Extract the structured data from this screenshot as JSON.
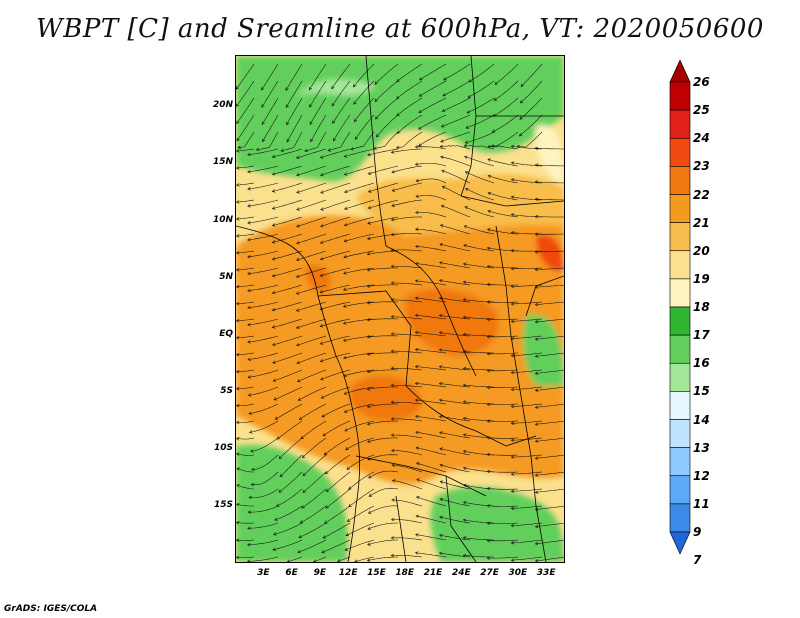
{
  "title": "WBPT [C] and Sreamline at 600hPa, VT: 2020050600",
  "credit": "GrADS: IGES/COLA",
  "lat_labels": [
    {
      "label": "20N",
      "lat": 20
    },
    {
      "label": "15N",
      "lat": 15
    },
    {
      "label": "10N",
      "lat": 10
    },
    {
      "label": "5N",
      "lat": 5
    },
    {
      "label": "EQ",
      "lat": 0
    },
    {
      "label": "5S",
      "lat": -5
    },
    {
      "label": "10S",
      "lat": -10
    },
    {
      "label": "15S",
      "lat": -15
    }
  ],
  "lon_labels": [
    {
      "label": "3E",
      "lon": 3
    },
    {
      "label": "6E",
      "lon": 6
    },
    {
      "label": "9E",
      "lon": 9
    },
    {
      "label": "12E",
      "lon": 12
    },
    {
      "label": "15E",
      "lon": 15
    },
    {
      "label": "18E",
      "lon": 18
    },
    {
      "label": "21E",
      "lon": 21
    },
    {
      "label": "24E",
      "lon": 24
    },
    {
      "label": "27E",
      "lon": 27
    },
    {
      "label": "30E",
      "lon": 30
    },
    {
      "label": "33E",
      "lon": 33
    }
  ],
  "lon_range": [
    0,
    35
  ],
  "lat_range": [
    -20,
    24.5
  ],
  "colorbar": {
    "levels": [
      "26",
      "25",
      "24",
      "23",
      "22",
      "21",
      "20",
      "19",
      "18",
      "17",
      "16",
      "15",
      "14",
      "13",
      "12",
      "11",
      "9",
      "7"
    ],
    "colors": [
      "#a50000",
      "#c00000",
      "#e0201a",
      "#f04a10",
      "#f07810",
      "#f59a20",
      "#f8bd4c",
      "#fbe08e",
      "#fff3bf",
      "#2fb52f",
      "#62cf5c",
      "#a4e79a",
      "#e6f7ff",
      "#c0e3ff",
      "#8fc7ff",
      "#5ba9f7",
      "#3a8ae8",
      "#1f66d6"
    ]
  },
  "regions": [
    {
      "name": "north-green",
      "color": "#62cf5c"
    },
    {
      "name": "southwest-green",
      "color": "#62cf5c"
    },
    {
      "name": "southeast-green",
      "color": "#62cf5c"
    },
    {
      "name": "central-orange",
      "color": "#f59a20"
    },
    {
      "name": "core-dark-orange",
      "color": "#f07810"
    }
  ]
}
